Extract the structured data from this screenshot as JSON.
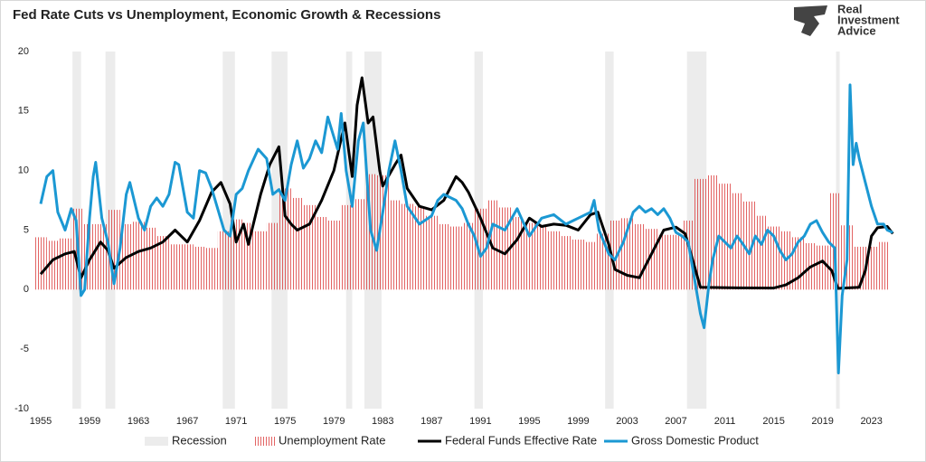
{
  "chart_data": {
    "type": "line",
    "title": "Fed Rate Cuts vs Unemployment, Economic Growth & Recessions",
    "logo": [
      "Real",
      "Investment",
      "Advice"
    ],
    "xlim": [
      1955,
      2024.8
    ],
    "xticks": [
      1955,
      1959,
      1963,
      1967,
      1971,
      1975,
      1979,
      1983,
      1987,
      1991,
      1995,
      1999,
      2003,
      2007,
      2011,
      2015,
      2019,
      2023
    ],
    "ylim": [
      -10,
      20
    ],
    "yticks": [
      -10,
      -5,
      0,
      5,
      10,
      15,
      20
    ],
    "recessions": {
      "name": "Recession",
      "color": "#ececec",
      "start": [
        1957.6,
        1960.3,
        1969.9,
        1973.9,
        1980.0,
        1981.5,
        1990.5,
        2001.2,
        2007.9,
        2020.1
      ],
      "end": [
        1958.3,
        1961.1,
        1970.9,
        1975.2,
        1980.5,
        1982.9,
        1991.2,
        2001.9,
        2009.5,
        2020.4
      ]
    },
    "series": [
      {
        "name": "Unemployment Rate",
        "kind": "bar",
        "color": "#d93030",
        "x": [
          1955,
          1956,
          1957,
          1958,
          1959,
          1960,
          1961,
          1962,
          1963,
          1964,
          1965,
          1966,
          1967,
          1968,
          1969,
          1970,
          1971,
          1972,
          1973,
          1974,
          1975,
          1976,
          1977,
          1978,
          1979,
          1980,
          1981,
          1982,
          1983,
          1984,
          1985,
          1986,
          1987,
          1988,
          1989,
          1990,
          1991,
          1992,
          1993,
          1994,
          1995,
          1996,
          1997,
          1998,
          1999,
          2000,
          2001,
          2002,
          2003,
          2004,
          2005,
          2006,
          2007,
          2008,
          2009,
          2010,
          2011,
          2012,
          2013,
          2014,
          2015,
          2016,
          2017,
          2018,
          2019,
          2020,
          2021,
          2022,
          2023,
          2024
        ],
        "values": [
          4.4,
          4.1,
          4.3,
          6.8,
          5.5,
          5.5,
          6.7,
          5.5,
          5.7,
          5.2,
          4.5,
          3.8,
          3.8,
          3.6,
          3.5,
          4.9,
          5.9,
          5.6,
          4.9,
          5.6,
          8.5,
          7.7,
          7.1,
          6.1,
          5.8,
          7.1,
          7.6,
          9.7,
          9.6,
          7.5,
          7.2,
          7.0,
          6.2,
          5.5,
          5.3,
          5.6,
          6.8,
          7.5,
          6.9,
          6.1,
          5.6,
          5.4,
          4.9,
          4.5,
          4.2,
          4.0,
          4.7,
          5.8,
          6.0,
          5.5,
          5.1,
          4.6,
          4.6,
          5.8,
          9.3,
          9.6,
          8.9,
          8.1,
          7.4,
          6.2,
          5.3,
          4.9,
          4.4,
          3.9,
          3.7,
          8.1,
          5.4,
          3.6,
          3.6,
          4.0
        ]
      },
      {
        "name": "Federal Funds Effective Rate",
        "kind": "line",
        "color": "#000000",
        "x": [
          1955,
          1956,
          1957,
          1957.75,
          1958.3,
          1959,
          1959.9,
          1960.5,
          1961,
          1962,
          1963,
          1964,
          1965,
          1966,
          1967,
          1968,
          1969,
          1969.75,
          1970.5,
          1971,
          1971.6,
          1972,
          1973,
          1973.75,
          1974.5,
          1975,
          1975.5,
          1976,
          1977,
          1978,
          1979,
          1979.9,
          1980.5,
          1980.9,
          1981.3,
          1981.8,
          1982.2,
          1982.75,
          1983,
          1984,
          1984.5,
          1985,
          1986,
          1987,
          1988,
          1989,
          1989.5,
          1990,
          1991,
          1992,
          1993,
          1994,
          1995,
          1996,
          1997,
          1998,
          1999,
          2000,
          2000.6,
          2001.5,
          2002,
          2003,
          2004,
          2005,
          2006,
          2007,
          2007.75,
          2008.5,
          2009,
          2012,
          2015,
          2016,
          2017,
          2018,
          2019,
          2019.75,
          2020.25,
          2022,
          2022.5,
          2023,
          2023.5,
          2024.3,
          2024.75
        ],
        "values": [
          1.3,
          2.5,
          3.0,
          3.2,
          1.0,
          2.5,
          4.0,
          3.3,
          1.8,
          2.7,
          3.2,
          3.5,
          4.0,
          5.0,
          4.0,
          5.8,
          8.2,
          9.0,
          7.2,
          4.0,
          5.5,
          3.8,
          8.0,
          10.5,
          12.0,
          6.2,
          5.5,
          5.0,
          5.5,
          7.5,
          10.0,
          14.0,
          9.5,
          15.5,
          17.8,
          14.0,
          14.5,
          10.0,
          8.7,
          10.5,
          11.3,
          8.5,
          7.0,
          6.7,
          7.5,
          9.5,
          9.0,
          8.2,
          6.0,
          3.5,
          3.0,
          4.2,
          6.0,
          5.3,
          5.5,
          5.4,
          5.0,
          6.3,
          6.5,
          3.8,
          1.7,
          1.2,
          1.0,
          3.0,
          5.0,
          5.25,
          4.7,
          2.0,
          0.2,
          0.15,
          0.13,
          0.4,
          1.0,
          1.9,
          2.4,
          1.6,
          0.1,
          0.2,
          1.6,
          4.5,
          5.2,
          5.3,
          4.7
        ]
      },
      {
        "name": "Gross Domestic Product",
        "kind": "line",
        "color": "#1b98d3",
        "x": [
          1955,
          1955.5,
          1956,
          1956.4,
          1957,
          1957.5,
          1957.9,
          1958.3,
          1958.6,
          1959,
          1959.3,
          1959.5,
          1960,
          1960.5,
          1961,
          1961.5,
          1962,
          1962.3,
          1963,
          1963.5,
          1964,
          1964.5,
          1965,
          1965.5,
          1966,
          1966.3,
          1967,
          1967.5,
          1968,
          1968.5,
          1969,
          1970,
          1970.5,
          1971,
          1971.5,
          1972,
          1972.8,
          1973.5,
          1974,
          1974.5,
          1975,
          1975.5,
          1976,
          1976.5,
          1977,
          1977.5,
          1978,
          1978.5,
          1979.3,
          1979.6,
          1980,
          1980.5,
          1981,
          1981.4,
          1982,
          1982.5,
          1983,
          1983.5,
          1984,
          1984.5,
          1985,
          1986,
          1987,
          1987.5,
          1988,
          1989,
          1989.5,
          1990,
          1990.5,
          1991,
          1991.5,
          1992,
          1993,
          1994,
          1995,
          1996,
          1997,
          1998,
          1999,
          2000,
          2000.3,
          2000.7,
          2001.5,
          2002,
          2002.7,
          2003.5,
          2004,
          2004.5,
          2005,
          2005.5,
          2006,
          2006.5,
          2007,
          2007.5,
          2008,
          2008.5,
          2009,
          2009.3,
          2009.7,
          2010,
          2010.5,
          2011,
          2011.5,
          2012,
          2012.5,
          2013,
          2013.5,
          2014,
          2014.5,
          2015,
          2015.5,
          2016,
          2016.5,
          2017,
          2017.5,
          2018,
          2018.5,
          2019,
          2019.5,
          2020,
          2020.3,
          2020.6,
          2021,
          2021.25,
          2021.5,
          2021.75,
          2022,
          2022.5,
          2023,
          2023.5,
          2024,
          2024.3,
          2024.75
        ],
        "values": [
          7.2,
          9.5,
          10.0,
          6.5,
          5.0,
          6.8,
          5.8,
          -0.5,
          0.0,
          6.0,
          9.5,
          10.7,
          6.0,
          4.0,
          0.5,
          3.5,
          8.0,
          9.0,
          6.0,
          5.0,
          7.0,
          7.7,
          7.0,
          8.0,
          10.7,
          10.5,
          6.5,
          6.0,
          10.0,
          9.8,
          8.5,
          5.0,
          4.5,
          8.0,
          8.5,
          10.0,
          11.8,
          11.0,
          8.0,
          8.4,
          7.5,
          10.5,
          12.5,
          10.2,
          11.0,
          12.5,
          11.5,
          14.5,
          11.8,
          14.8,
          10.0,
          7.0,
          12.5,
          14.0,
          5.0,
          3.3,
          6.5,
          10.0,
          12.5,
          10.0,
          7.0,
          5.5,
          6.2,
          7.5,
          8.0,
          7.5,
          6.8,
          5.5,
          4.5,
          2.8,
          3.5,
          5.5,
          5.0,
          6.8,
          4.5,
          6.0,
          6.3,
          5.5,
          6.0,
          6.5,
          7.5,
          5.0,
          3.0,
          2.5,
          4.0,
          6.5,
          7.0,
          6.5,
          6.8,
          6.3,
          6.8,
          6.0,
          4.8,
          4.5,
          4.0,
          1.0,
          -2.0,
          -3.2,
          0.5,
          2.5,
          4.5,
          4.0,
          3.5,
          4.5,
          3.8,
          3.0,
          4.5,
          3.8,
          5.0,
          4.5,
          3.3,
          2.5,
          3.0,
          4.0,
          4.5,
          5.5,
          5.8,
          4.8,
          4.0,
          3.5,
          -7.0,
          -0.5,
          2.5,
          17.2,
          10.5,
          12.3,
          11.0,
          9.0,
          7.0,
          5.5,
          5.5,
          5.0,
          4.8
        ]
      }
    ]
  }
}
